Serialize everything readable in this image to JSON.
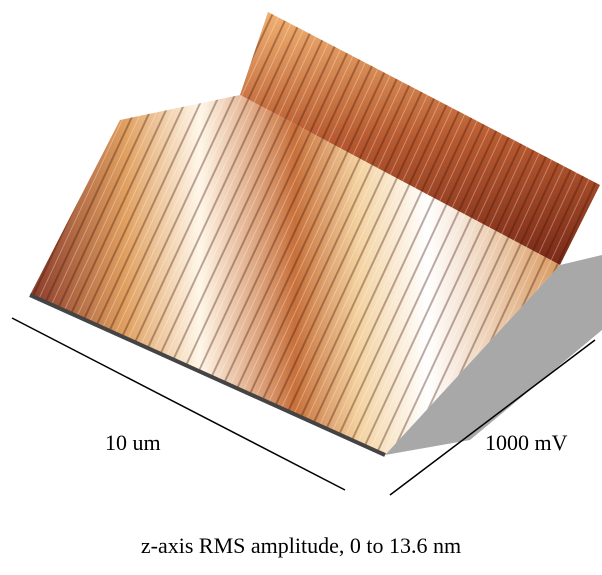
{
  "labels": {
    "x_axis": "10 um",
    "y_axis": "1000 mV"
  },
  "caption": "z-axis RMS amplitude, 0 to 13.6 nm"
}
